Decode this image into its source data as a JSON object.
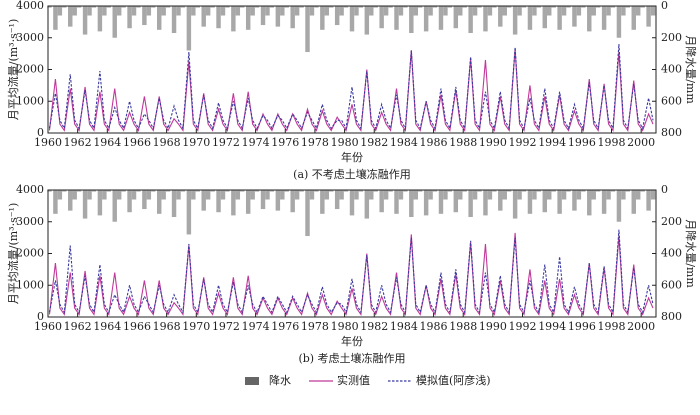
{
  "chart_data": [
    {
      "type": "line",
      "title": "(a) 不考虑土壤冻融作用",
      "xlabel": "年份",
      "ylabel": "月平均流量/(m³·s⁻¹)",
      "y2label": "月降水量/mm",
      "xlim": [
        1960,
        2001
      ],
      "xticks": [
        1960,
        1962,
        1964,
        1966,
        1968,
        1970,
        1972,
        1974,
        1976,
        1978,
        1980,
        1982,
        1984,
        1986,
        1988,
        1990,
        1992,
        1994,
        1996,
        1998,
        2000
      ],
      "ylim": [
        0,
        4000
      ],
      "yticks": [
        0,
        1000,
        2000,
        3000,
        4000
      ],
      "y2lim": [
        800,
        0
      ],
      "y2ticks": [
        0,
        200,
        400,
        600,
        800
      ],
      "x": [
        1960.1,
        1960.5,
        1960.8,
        1961.1,
        1961.5,
        1961.8,
        1962.1,
        1962.5,
        1962.8,
        1963.1,
        1963.5,
        1963.8,
        1964.1,
        1964.5,
        1964.8,
        1965.1,
        1965.5,
        1965.8,
        1966.1,
        1966.5,
        1966.8,
        1967.1,
        1967.5,
        1967.8,
        1968.1,
        1968.5,
        1968.8,
        1969.1,
        1969.5,
        1969.8,
        1970.1,
        1970.5,
        1970.8,
        1971.1,
        1971.5,
        1971.8,
        1972.1,
        1972.5,
        1972.8,
        1973.1,
        1973.5,
        1973.8,
        1974.1,
        1974.5,
        1974.8,
        1975.1,
        1975.5,
        1975.8,
        1976.1,
        1976.5,
        1976.8,
        1977.1,
        1977.5,
        1977.8,
        1978.1,
        1978.5,
        1978.8,
        1979.1,
        1979.5,
        1979.8,
        1980.1,
        1980.5,
        1980.8,
        1981.1,
        1981.5,
        1981.8,
        1982.1,
        1982.5,
        1982.8,
        1983.1,
        1983.5,
        1983.8,
        1984.1,
        1984.5,
        1984.8,
        1985.1,
        1985.5,
        1985.8,
        1986.1,
        1986.5,
        1986.8,
        1987.1,
        1987.5,
        1987.8,
        1988.1,
        1988.5,
        1988.8,
        1989.1,
        1989.5,
        1989.8,
        1990.1,
        1990.5,
        1990.8,
        1991.1,
        1991.5,
        1991.8,
        1992.1,
        1992.5,
        1992.8,
        1993.1,
        1993.5,
        1993.8,
        1994.1,
        1994.5,
        1994.8,
        1995.1,
        1995.5,
        1995.8,
        1996.1,
        1996.5,
        1996.8,
        1997.1,
        1997.5,
        1997.8,
        1998.1,
        1998.5,
        1998.8,
        1999.1,
        1999.5,
        1999.8,
        2000.1,
        2000.5,
        2000.8
      ],
      "series": [
        {
          "kind": "bar",
          "axis": "y2",
          "color": "#a8a8a8",
          "values": [
            10,
            150,
            60,
            10,
            130,
            60,
            10,
            180,
            60,
            10,
            160,
            60,
            10,
            200,
            60,
            10,
            140,
            60,
            10,
            120,
            60,
            10,
            150,
            60,
            10,
            170,
            60,
            10,
            280,
            60,
            10,
            130,
            60,
            10,
            140,
            60,
            10,
            160,
            60,
            10,
            150,
            60,
            10,
            120,
            60,
            10,
            130,
            60,
            10,
            140,
            60,
            10,
            290,
            60,
            10,
            150,
            60,
            10,
            120,
            60,
            10,
            160,
            60,
            10,
            180,
            60,
            10,
            140,
            60,
            10,
            150,
            60,
            10,
            170,
            60,
            10,
            160,
            60,
            10,
            150,
            60,
            10,
            140,
            60,
            10,
            170,
            60,
            10,
            160,
            60,
            10,
            130,
            60,
            10,
            180,
            60,
            10,
            150,
            60,
            10,
            140,
            60,
            10,
            150,
            60,
            10,
            130,
            60,
            10,
            160,
            60,
            10,
            150,
            60,
            10,
            200,
            60,
            10,
            150,
            60,
            10,
            130,
            60
          ]
        },
        {
          "kind": "line",
          "color": "#c0399a",
          "values": [
            80,
            1700,
            280,
            80,
            1400,
            280,
            80,
            1450,
            280,
            80,
            1300,
            280,
            80,
            1400,
            280,
            80,
            650,
            280,
            80,
            1150,
            280,
            80,
            1150,
            280,
            80,
            450,
            280,
            80,
            2250,
            280,
            80,
            1250,
            280,
            80,
            750,
            280,
            80,
            1250,
            280,
            80,
            1300,
            280,
            80,
            600,
            280,
            80,
            600,
            280,
            80,
            600,
            280,
            80,
            750,
            280,
            80,
            700,
            280,
            80,
            500,
            280,
            80,
            900,
            280,
            80,
            2000,
            280,
            80,
            650,
            280,
            80,
            1400,
            280,
            80,
            2600,
            280,
            80,
            1000,
            280,
            80,
            1200,
            280,
            80,
            1350,
            280,
            80,
            2350,
            280,
            80,
            2300,
            280,
            80,
            1150,
            280,
            80,
            2650,
            280,
            80,
            1500,
            280,
            80,
            1150,
            280,
            80,
            1200,
            280,
            80,
            700,
            280,
            80,
            1700,
            280,
            80,
            1550,
            280,
            80,
            2550,
            280,
            80,
            1650,
            280,
            80,
            600,
            280
          ]
        },
        {
          "kind": "line",
          "dash": true,
          "color": "#3a3aa0",
          "values": [
            150,
            1250,
            400,
            150,
            1850,
            400,
            150,
            1350,
            400,
            150,
            1950,
            400,
            150,
            800,
            400,
            150,
            1000,
            400,
            150,
            600,
            400,
            150,
            1100,
            400,
            150,
            850,
            400,
            150,
            2550,
            400,
            150,
            1200,
            400,
            150,
            950,
            400,
            150,
            1000,
            400,
            150,
            1100,
            400,
            150,
            550,
            400,
            150,
            550,
            400,
            150,
            600,
            400,
            150,
            650,
            400,
            150,
            900,
            400,
            150,
            400,
            400,
            150,
            1450,
            400,
            150,
            1950,
            400,
            150,
            900,
            400,
            150,
            1200,
            400,
            150,
            2600,
            400,
            150,
            1000,
            400,
            150,
            1400,
            400,
            150,
            1450,
            400,
            150,
            2400,
            400,
            150,
            1300,
            400,
            150,
            1300,
            400,
            150,
            2700,
            400,
            150,
            1100,
            400,
            150,
            1400,
            400,
            150,
            1300,
            400,
            150,
            900,
            400,
            150,
            1600,
            400,
            150,
            1500,
            400,
            150,
            2800,
            400,
            150,
            1550,
            400,
            150,
            1100,
            400
          ]
        }
      ]
    },
    {
      "type": "line",
      "title": "(b) 考虑土壤冻融作用",
      "xlabel": "年份",
      "ylabel": "月平均流量/(m³·s⁻¹)",
      "y2label": "月降水量/mm",
      "xlim": [
        1960,
        2001
      ],
      "xticks": [
        1960,
        1962,
        1964,
        1966,
        1968,
        1970,
        1972,
        1974,
        1976,
        1978,
        1980,
        1982,
        1984,
        1986,
        1988,
        1990,
        1992,
        1994,
        1996,
        1998,
        2000
      ],
      "ylim": [
        0,
        4000
      ],
      "yticks": [
        0,
        1000,
        2000,
        3000,
        4000
      ],
      "y2lim": [
        800,
        0
      ],
      "y2ticks": [
        0,
        200,
        400,
        600,
        800
      ],
      "x": [
        1960.1,
        1960.5,
        1960.8,
        1961.1,
        1961.5,
        1961.8,
        1962.1,
        1962.5,
        1962.8,
        1963.1,
        1963.5,
        1963.8,
        1964.1,
        1964.5,
        1964.8,
        1965.1,
        1965.5,
        1965.8,
        1966.1,
        1966.5,
        1966.8,
        1967.1,
        1967.5,
        1967.8,
        1968.1,
        1968.5,
        1968.8,
        1969.1,
        1969.5,
        1969.8,
        1970.1,
        1970.5,
        1970.8,
        1971.1,
        1971.5,
        1971.8,
        1972.1,
        1972.5,
        1972.8,
        1973.1,
        1973.5,
        1973.8,
        1974.1,
        1974.5,
        1974.8,
        1975.1,
        1975.5,
        1975.8,
        1976.1,
        1976.5,
        1976.8,
        1977.1,
        1977.5,
        1977.8,
        1978.1,
        1978.5,
        1978.8,
        1979.1,
        1979.5,
        1979.8,
        1980.1,
        1980.5,
        1980.8,
        1981.1,
        1981.5,
        1981.8,
        1982.1,
        1982.5,
        1982.8,
        1983.1,
        1983.5,
        1983.8,
        1984.1,
        1984.5,
        1984.8,
        1985.1,
        1985.5,
        1985.8,
        1986.1,
        1986.5,
        1986.8,
        1987.1,
        1987.5,
        1987.8,
        1988.1,
        1988.5,
        1988.8,
        1989.1,
        1989.5,
        1989.8,
        1990.1,
        1990.5,
        1990.8,
        1991.1,
        1991.5,
        1991.8,
        1992.1,
        1992.5,
        1992.8,
        1993.1,
        1993.5,
        1993.8,
        1994.1,
        1994.5,
        1994.8,
        1995.1,
        1995.5,
        1995.8,
        1996.1,
        1996.5,
        1996.8,
        1997.1,
        1997.5,
        1997.8,
        1998.1,
        1998.5,
        1998.8,
        1999.1,
        1999.5,
        1999.8,
        2000.1,
        2000.5,
        2000.8
      ],
      "legend": "bottom",
      "series": [
        {
          "name": "降水",
          "legend_color": "#666666",
          "kind": "bar",
          "axis": "y2",
          "color": "#a8a8a8",
          "values": [
            10,
            150,
            60,
            10,
            130,
            60,
            10,
            180,
            60,
            10,
            160,
            60,
            10,
            200,
            60,
            10,
            140,
            60,
            10,
            120,
            60,
            10,
            150,
            60,
            10,
            170,
            60,
            10,
            280,
            60,
            10,
            130,
            60,
            10,
            140,
            60,
            10,
            160,
            60,
            10,
            150,
            60,
            10,
            120,
            60,
            10,
            130,
            60,
            10,
            140,
            60,
            10,
            290,
            60,
            10,
            150,
            60,
            10,
            120,
            60,
            10,
            160,
            60,
            10,
            180,
            60,
            10,
            140,
            60,
            10,
            150,
            60,
            10,
            170,
            60,
            10,
            160,
            60,
            10,
            150,
            60,
            10,
            140,
            60,
            10,
            170,
            60,
            10,
            160,
            60,
            10,
            130,
            60,
            10,
            180,
            60,
            10,
            150,
            60,
            10,
            140,
            60,
            10,
            150,
            60,
            10,
            130,
            60,
            10,
            160,
            60,
            10,
            150,
            60,
            10,
            200,
            60,
            10,
            150,
            60,
            10,
            130,
            60
          ]
        },
        {
          "name": "实测值",
          "kind": "line",
          "color": "#c0399a",
          "values": [
            80,
            1700,
            280,
            80,
            1400,
            280,
            80,
            1450,
            280,
            80,
            1300,
            280,
            80,
            1400,
            280,
            80,
            650,
            280,
            80,
            1150,
            280,
            80,
            1150,
            280,
            80,
            450,
            280,
            80,
            2250,
            280,
            80,
            1250,
            280,
            80,
            750,
            280,
            80,
            1250,
            280,
            80,
            1300,
            280,
            80,
            600,
            280,
            80,
            600,
            280,
            80,
            600,
            280,
            80,
            750,
            280,
            80,
            700,
            280,
            80,
            500,
            280,
            80,
            900,
            280,
            80,
            2000,
            280,
            80,
            650,
            280,
            80,
            1400,
            280,
            80,
            2600,
            280,
            80,
            1000,
            280,
            80,
            1200,
            280,
            80,
            1350,
            280,
            80,
            2350,
            280,
            80,
            2300,
            280,
            80,
            1150,
            280,
            80,
            2650,
            280,
            80,
            1500,
            280,
            80,
            1150,
            280,
            80,
            1200,
            280,
            80,
            700,
            280,
            80,
            1700,
            280,
            80,
            1550,
            280,
            80,
            2550,
            280,
            80,
            1650,
            280,
            80,
            600,
            280
          ]
        },
        {
          "name": "模拟值(阿彦浅)",
          "kind": "line",
          "dash": true,
          "color": "#3a3aa0",
          "values": [
            150,
            1150,
            400,
            150,
            2250,
            400,
            150,
            1300,
            400,
            150,
            1650,
            400,
            150,
            700,
            400,
            150,
            1000,
            400,
            150,
            650,
            400,
            150,
            1000,
            400,
            150,
            700,
            400,
            150,
            2300,
            400,
            150,
            1200,
            400,
            150,
            1000,
            400,
            150,
            1100,
            400,
            150,
            1000,
            400,
            150,
            650,
            400,
            150,
            650,
            400,
            150,
            650,
            400,
            150,
            700,
            400,
            150,
            950,
            400,
            150,
            450,
            400,
            150,
            1200,
            400,
            150,
            1950,
            400,
            150,
            1000,
            400,
            150,
            1250,
            400,
            150,
            2500,
            400,
            150,
            1000,
            400,
            150,
            1400,
            400,
            150,
            1500,
            400,
            150,
            2400,
            400,
            150,
            1400,
            400,
            150,
            1300,
            400,
            150,
            2500,
            400,
            150,
            1150,
            400,
            150,
            1650,
            400,
            150,
            1900,
            400,
            150,
            950,
            400,
            150,
            1700,
            400,
            150,
            1600,
            400,
            150,
            2750,
            400,
            150,
            1550,
            400,
            150,
            1000,
            400
          ]
        }
      ]
    }
  ]
}
